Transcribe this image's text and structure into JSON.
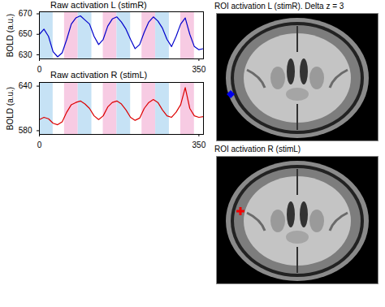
{
  "chart_data": [
    {
      "type": "line",
      "title": "Raw activation L (stimR)",
      "ylabel": "BOLD (a.u.)",
      "x": [
        0,
        10,
        20,
        30,
        40,
        50,
        60,
        70,
        80,
        90,
        100,
        110,
        120,
        130,
        140,
        150,
        160,
        170,
        180,
        190,
        200,
        210,
        220,
        230,
        240,
        250,
        260,
        270,
        280,
        290,
        300,
        310,
        320,
        330,
        340,
        350,
        360
      ],
      "values": [
        650,
        655,
        648,
        633,
        628,
        632,
        645,
        660,
        666,
        668,
        664,
        660,
        648,
        640,
        645,
        658,
        665,
        667,
        662,
        655,
        645,
        636,
        640,
        652,
        662,
        667,
        663,
        656,
        645,
        638,
        648,
        660,
        666,
        650,
        638,
        635,
        636
      ],
      "color": "#0000cc",
      "bands": [
        {
          "start": 0,
          "end": 30,
          "color": "#c6e2f5"
        },
        {
          "start": 55,
          "end": 85,
          "color": "#f7cbe3"
        },
        {
          "start": 85,
          "end": 115,
          "color": "#c6e2f5"
        },
        {
          "start": 140,
          "end": 170,
          "color": "#f7cbe3"
        },
        {
          "start": 170,
          "end": 200,
          "color": "#c6e2f5"
        },
        {
          "start": 225,
          "end": 255,
          "color": "#f7cbe3"
        },
        {
          "start": 255,
          "end": 285,
          "color": "#c6e2f5"
        },
        {
          "start": 310,
          "end": 340,
          "color": "#f7cbe3"
        }
      ],
      "xlim": [
        0,
        360
      ],
      "xticks": [
        0,
        350
      ],
      "ylim": [
        626,
        672
      ],
      "yticks": [
        630,
        650,
        670
      ]
    },
    {
      "type": "line",
      "title": "Raw activation R (stimL)",
      "ylabel": "BOLD (a.u.)",
      "x": [
        0,
        10,
        20,
        30,
        40,
        50,
        60,
        70,
        80,
        90,
        100,
        110,
        120,
        130,
        140,
        150,
        160,
        170,
        180,
        190,
        200,
        210,
        220,
        230,
        240,
        250,
        260,
        270,
        280,
        290,
        300,
        310,
        320,
        330,
        340,
        350,
        360
      ],
      "values": [
        595,
        598,
        596,
        590,
        588,
        592,
        605,
        615,
        618,
        620,
        616,
        610,
        600,
        595,
        600,
        612,
        618,
        620,
        616,
        608,
        598,
        594,
        597,
        610,
        618,
        622,
        618,
        608,
        600,
        598,
        605,
        615,
        638,
        610,
        600,
        598,
        599
      ],
      "color": "#dd0000",
      "bands": [
        {
          "start": 0,
          "end": 30,
          "color": "#c6e2f5"
        },
        {
          "start": 55,
          "end": 85,
          "color": "#f7cbe3"
        },
        {
          "start": 85,
          "end": 115,
          "color": "#c6e2f5"
        },
        {
          "start": 140,
          "end": 170,
          "color": "#f7cbe3"
        },
        {
          "start": 170,
          "end": 200,
          "color": "#c6e2f5"
        },
        {
          "start": 225,
          "end": 255,
          "color": "#f7cbe3"
        },
        {
          "start": 255,
          "end": 285,
          "color": "#c6e2f5"
        },
        {
          "start": 310,
          "end": 340,
          "color": "#f7cbe3"
        }
      ],
      "xlim": [
        0,
        360
      ],
      "xticks": [
        0,
        350
      ],
      "ylim": [
        575,
        645
      ],
      "yticks": [
        580,
        640
      ]
    }
  ],
  "panels": [
    {
      "title": "ROI activation L (stimR). Delta z = 3",
      "color": "#0000ee"
    },
    {
      "title": "ROI activation R (stimL)",
      "color": "#ee0000"
    }
  ]
}
